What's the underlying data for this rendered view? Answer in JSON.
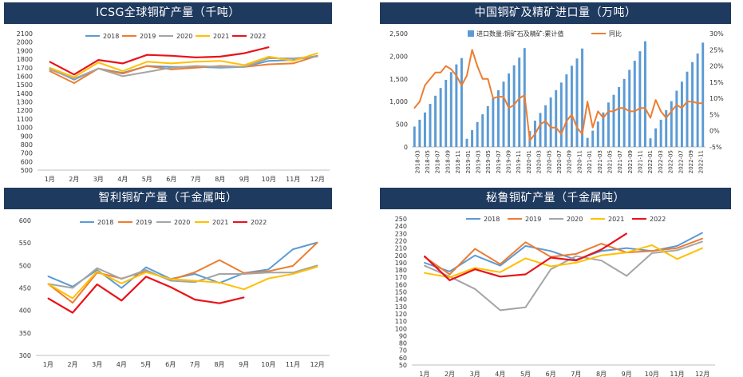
{
  "months": [
    "1月",
    "2月",
    "3月",
    "4月",
    "5月",
    "6月",
    "7月",
    "8月",
    "9月",
    "10月",
    "11月",
    "12月"
  ],
  "colors": {
    "header_bg": "#1f3a5f",
    "y2018": "#5b9bd5",
    "y2019": "#ed7d31",
    "y2020": "#a5a5a5",
    "y2021": "#ffc000",
    "y2022": "#e8131a",
    "bar": "#5b9bd5",
    "yoy": "#ed7d31"
  },
  "chart_data": [
    {
      "id": "icsg",
      "type": "line",
      "title": "ICSG全球铜矿产量（千吨）",
      "ylim": [
        500,
        2100
      ],
      "yticks": [
        500,
        600,
        700,
        800,
        900,
        1000,
        1100,
        1200,
        1300,
        1400,
        1500,
        1600,
        1700,
        1800,
        1900,
        2000,
        2100
      ],
      "series": [
        {
          "name": "2018",
          "values": [
            1690,
            1560,
            1690,
            1640,
            1720,
            1710,
            1710,
            1700,
            1710,
            1780,
            1790,
            1840
          ]
        },
        {
          "name": "2019",
          "values": [
            1660,
            1520,
            1690,
            1630,
            1720,
            1680,
            1700,
            1720,
            1710,
            1740,
            1750,
            1840
          ]
        },
        {
          "name": "2020",
          "values": [
            1680,
            1570,
            1690,
            1600,
            1650,
            1700,
            1720,
            1710,
            1710,
            1810,
            1810,
            1830
          ]
        },
        {
          "name": "2021",
          "values": [
            1700,
            1590,
            1760,
            1660,
            1770,
            1750,
            1770,
            1780,
            1730,
            1830,
            1780,
            1870
          ]
        },
        {
          "name": "2022",
          "values": [
            1770,
            1620,
            1790,
            1750,
            1850,
            1840,
            1820,
            1830,
            1870,
            1940
          ]
        }
      ]
    },
    {
      "id": "imports",
      "type": "bar+line",
      "title": "中国铜矿及精矿进口量（万吨）",
      "legend_bar": "进口数量:铜矿石及精矿:累计值",
      "legend_line": "同比",
      "ylim_left": [
        0,
        2500
      ],
      "yticks_left": [
        "0",
        "500",
        "1,000",
        "1,500",
        "2,000",
        "2,500"
      ],
      "ylim_right": [
        -5,
        30
      ],
      "yticks_right": [
        "-5%",
        "0%",
        "5%",
        "10%",
        "15%",
        "20%",
        "25%",
        "30%"
      ],
      "x_labels": [
        "2018-03",
        "2018-05",
        "2018-07",
        "2018-09",
        "2018-11",
        "2019-01",
        "2019-03",
        "2019-05",
        "2019-07",
        "2019-09",
        "2019-11",
        "2020-01",
        "2020-03",
        "2020-05",
        "2020-07",
        "2020-09",
        "2020-11",
        "2021-01",
        "2021-03",
        "2021-05",
        "2021-07",
        "2021-09",
        "2021-11",
        "2022-01",
        "2022-03",
        "2022-05",
        "2022-07",
        "2022-09",
        "2022-11"
      ],
      "bars": [
        450,
        600,
        760,
        950,
        1130,
        1300,
        1480,
        1650,
        1820,
        1960,
        180,
        370,
        550,
        720,
        900,
        1080,
        1250,
        1440,
        1620,
        1800,
        1970,
        2180,
        350,
        580,
        750,
        920,
        1090,
        1250,
        1420,
        1600,
        1790,
        1950,
        2170,
        200,
        360,
        560,
        760,
        980,
        1150,
        1320,
        1500,
        1700,
        1900,
        2110,
        2330,
        190,
        410,
        600,
        810,
        1010,
        1240,
        1440,
        1660,
        1870,
        2060,
        2300
      ],
      "yoy": [
        7,
        9,
        14,
        16,
        18,
        18,
        20,
        19,
        17,
        14,
        17,
        25,
        20,
        16,
        16,
        10,
        10.5,
        10.5,
        7,
        8,
        10,
        11,
        -3,
        -1,
        2,
        3,
        1,
        1,
        -1,
        3,
        5,
        1,
        -1,
        9,
        1,
        6,
        4,
        6,
        6,
        7,
        7,
        6,
        6,
        7,
        7,
        4,
        9.5,
        6,
        4,
        6,
        8,
        7,
        9,
        9,
        8.5,
        8.5
      ]
    },
    {
      "id": "chile",
      "type": "line",
      "title": "智利铜矿产量（千金属吨）",
      "ylim": [
        300,
        600
      ],
      "yticks": [
        300,
        350,
        400,
        450,
        500,
        550,
        600
      ],
      "series": [
        {
          "name": "2018",
          "values": [
            476,
            453,
            490,
            450,
            496,
            470,
            481,
            461,
            483,
            491,
            536,
            551
          ]
        },
        {
          "name": "2019",
          "values": [
            459,
            417,
            484,
            471,
            487,
            468,
            485,
            512,
            483,
            487,
            499,
            551
          ]
        },
        {
          "name": "2020",
          "values": [
            459,
            450,
            494,
            470,
            490,
            466,
            463,
            481,
            481,
            484,
            484,
            500
          ]
        },
        {
          "name": "2021",
          "values": [
            459,
            427,
            487,
            460,
            485,
            470,
            466,
            462,
            447,
            471,
            481,
            497
          ]
        },
        {
          "name": "2022",
          "values": [
            427,
            395,
            458,
            422,
            475,
            452,
            424,
            416,
            429
          ]
        }
      ]
    },
    {
      "id": "peru",
      "type": "line",
      "title": "秘鲁铜矿产量（千金属吨）",
      "ylim": [
        50,
        250
      ],
      "yticks": [
        50,
        60,
        70,
        80,
        90,
        100,
        110,
        120,
        130,
        140,
        150,
        160,
        170,
        180,
        190,
        200,
        210,
        220,
        230,
        240,
        250
      ],
      "series": [
        {
          "name": "2018",
          "values": [
            190,
            178,
            200,
            186,
            213,
            206,
            194,
            206,
            210,
            206,
            213,
            231
          ]
        },
        {
          "name": "2019",
          "values": [
            198,
            174,
            209,
            188,
            218,
            198,
            202,
            216,
            204,
            206,
            210,
            223
          ]
        },
        {
          "name": "2020",
          "values": [
            186,
            171,
            154,
            125,
            129,
            181,
            199,
            193,
            172,
            203,
            207,
            219
          ]
        },
        {
          "name": "2021",
          "values": [
            176,
            170,
            183,
            177,
            196,
            185,
            190,
            200,
            204,
            214,
            195,
            210
          ]
        },
        {
          "name": "2022",
          "values": [
            199,
            166,
            181,
            171,
            174,
            197,
            193,
            208,
            230
          ]
        }
      ]
    }
  ]
}
